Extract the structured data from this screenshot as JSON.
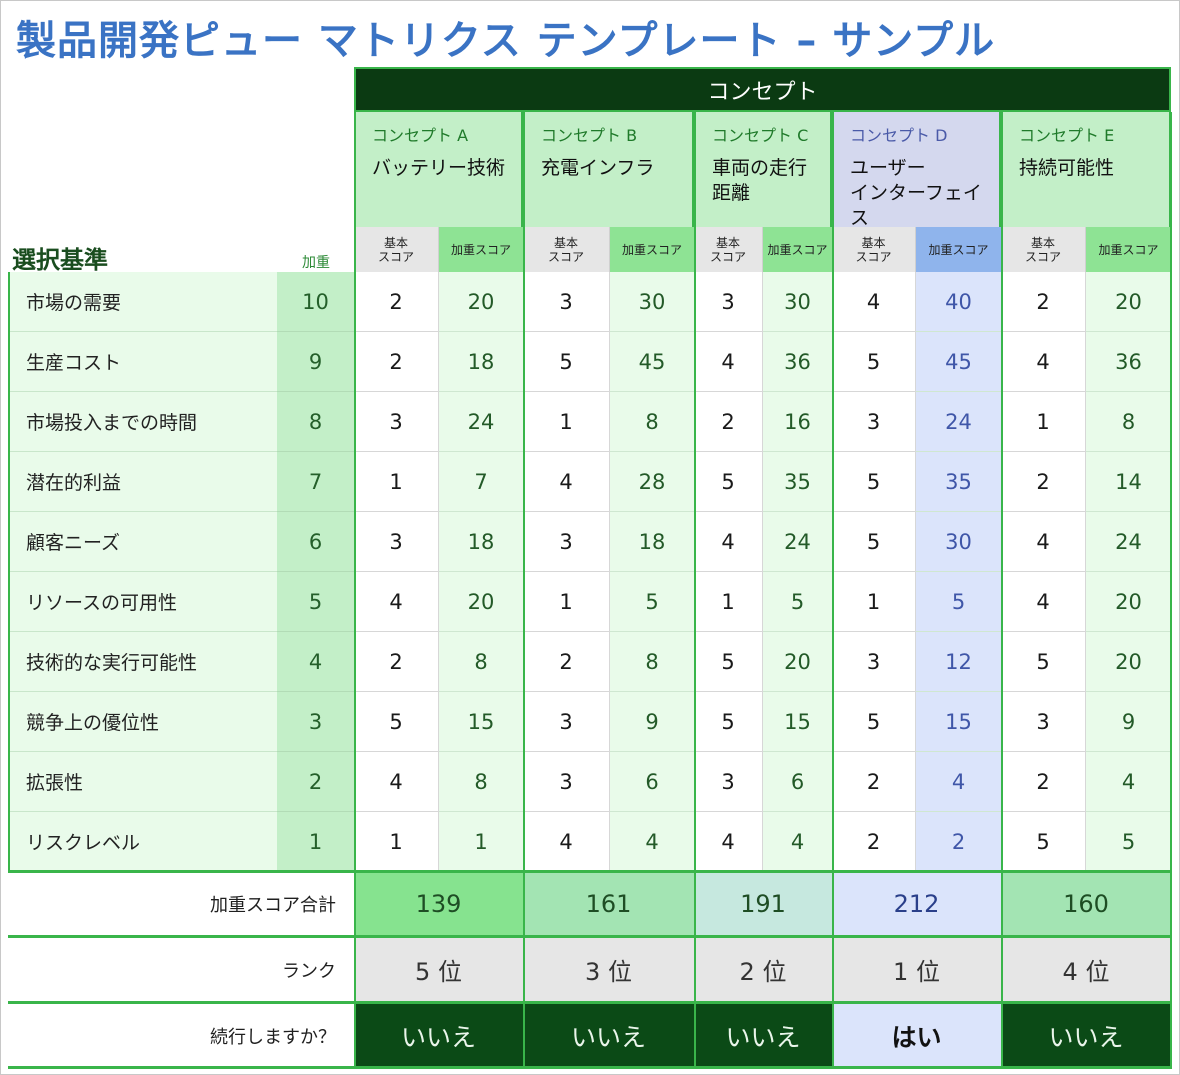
{
  "title": "製品開発ピュー マトリクス テンプレート – サンプル",
  "header": "コンセプト",
  "criteria_title": "選択基準",
  "weight_title": "加重",
  "base_score_label": "基本\nスコア",
  "weighted_score_label": "加重スコア",
  "concepts": [
    {
      "label": "コンセプト A",
      "name": "バッテリー技術"
    },
    {
      "label": "コンセプト B",
      "name": "充電インフラ"
    },
    {
      "label": "コンセプト C",
      "name": "車両の走行\n距離"
    },
    {
      "label": "コンセプト D",
      "name": "ユーザー\nインターフェイス"
    },
    {
      "label": "コンセプト E",
      "name": "持続可能性"
    }
  ],
  "rows": [
    {
      "criterion": "市場の需要",
      "weight": "10",
      "scores": [
        [
          "2",
          "20"
        ],
        [
          "3",
          "30"
        ],
        [
          "3",
          "30"
        ],
        [
          "4",
          "40"
        ],
        [
          "2",
          "20"
        ]
      ]
    },
    {
      "criterion": "生産コスト",
      "weight": "9",
      "scores": [
        [
          "2",
          "18"
        ],
        [
          "5",
          "45"
        ],
        [
          "4",
          "36"
        ],
        [
          "5",
          "45"
        ],
        [
          "4",
          "36"
        ]
      ]
    },
    {
      "criterion": "市場投入までの時間",
      "weight": "8",
      "scores": [
        [
          "3",
          "24"
        ],
        [
          "1",
          "8"
        ],
        [
          "2",
          "16"
        ],
        [
          "3",
          "24"
        ],
        [
          "1",
          "8"
        ]
      ]
    },
    {
      "criterion": "潜在的利益",
      "weight": "7",
      "scores": [
        [
          "1",
          "7"
        ],
        [
          "4",
          "28"
        ],
        [
          "5",
          "35"
        ],
        [
          "5",
          "35"
        ],
        [
          "2",
          "14"
        ]
      ]
    },
    {
      "criterion": "顧客ニーズ",
      "weight": "6",
      "scores": [
        [
          "3",
          "18"
        ],
        [
          "3",
          "18"
        ],
        [
          "4",
          "24"
        ],
        [
          "5",
          "30"
        ],
        [
          "4",
          "24"
        ]
      ]
    },
    {
      "criterion": "リソースの可用性",
      "weight": "5",
      "scores": [
        [
          "4",
          "20"
        ],
        [
          "1",
          "5"
        ],
        [
          "1",
          "5"
        ],
        [
          "1",
          "5"
        ],
        [
          "4",
          "20"
        ]
      ]
    },
    {
      "criterion": "技術的な実行可能性",
      "weight": "4",
      "scores": [
        [
          "2",
          "8"
        ],
        [
          "2",
          "8"
        ],
        [
          "5",
          "20"
        ],
        [
          "3",
          "12"
        ],
        [
          "5",
          "20"
        ]
      ]
    },
    {
      "criterion": "競争上の優位性",
      "weight": "3",
      "scores": [
        [
          "5",
          "15"
        ],
        [
          "3",
          "9"
        ],
        [
          "5",
          "15"
        ],
        [
          "5",
          "15"
        ],
        [
          "3",
          "9"
        ]
      ]
    },
    {
      "criterion": "拡張性",
      "weight": "2",
      "scores": [
        [
          "4",
          "8"
        ],
        [
          "3",
          "6"
        ],
        [
          "3",
          "6"
        ],
        [
          "2",
          "4"
        ],
        [
          "2",
          "4"
        ]
      ]
    },
    {
      "criterion": "リスクレベル",
      "weight": "1",
      "scores": [
        [
          "1",
          "1"
        ],
        [
          "4",
          "4"
        ],
        [
          "4",
          "4"
        ],
        [
          "2",
          "2"
        ],
        [
          "5",
          "5"
        ]
      ]
    }
  ],
  "totals_label": "加重スコア合計",
  "totals": [
    "139",
    "161",
    "191",
    "212",
    "160"
  ],
  "rank_label": "ランク",
  "ranks": [
    "5 位",
    "3 位",
    "2 位",
    "1 位",
    "4 位"
  ],
  "continue_label": "続行しますか？",
  "continue": [
    "いいえ",
    "いいえ",
    "いいえ",
    "はい",
    "いいえ"
  ],
  "colors": {
    "title": "#3a73c4",
    "header_bg": "#0b3a12",
    "border_green": "#39b54a",
    "highlight_blue": "#dbe4fb",
    "no_bg": "#0b4a16",
    "yes_bg": "#dbe4fb"
  }
}
